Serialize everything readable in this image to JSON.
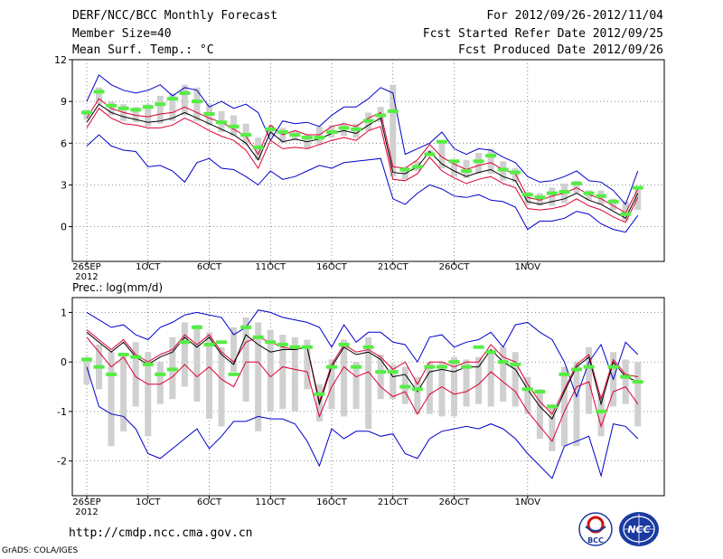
{
  "header": {
    "title": "DERF/NCC/BCC Monthly Forecast",
    "member": "Member Size=40",
    "variable": "Mean Surf. Temp.: °C",
    "period": "For 2012/09/26-2012/11/04",
    "started": "Fcst Started Refer Date 2012/09/25",
    "produced": "Fcst Produced Date 2012/09/26"
  },
  "footer": {
    "url": "http://cmdp.ncc.cma.gov.cn",
    "grads": "GrADS: COLA/IGES",
    "bcc_logo": "BCC",
    "ncc_logo": "NCC"
  },
  "colors": {
    "envelope": "#0000cc",
    "spread": "#dd0033",
    "mean": "#000000",
    "box": "#d0d0d0",
    "median": "#55ee44",
    "grid": "#555555"
  },
  "chart_data": [
    {
      "type": "line",
      "title": "Mean Surf. Temp.: °C",
      "ylim": [
        -2.5,
        12
      ],
      "yticks": [
        0,
        3,
        6,
        9,
        12
      ],
      "xticks": [
        {
          "day": 0,
          "label": "26SEP",
          "sublabel": "2012"
        },
        {
          "day": 5,
          "label": "1OCT"
        },
        {
          "day": 10,
          "label": "6OCT"
        },
        {
          "day": 15,
          "label": "11OCT"
        },
        {
          "day": 20,
          "label": "16OCT"
        },
        {
          "day": 25,
          "label": "21OCT"
        },
        {
          "day": 30,
          "label": "26OCT"
        },
        {
          "day": 36,
          "label": "1NOV"
        }
      ],
      "series": [
        {
          "name": "max",
          "values": [
            9.0,
            10.9,
            10.2,
            9.8,
            9.6,
            9.8,
            10.2,
            9.4,
            10.0,
            9.8,
            8.6,
            9.0,
            8.5,
            8.8,
            8.2,
            6.2,
            7.6,
            7.4,
            7.5,
            7.2,
            8.0,
            8.6,
            8.6,
            9.2,
            10.0,
            9.6,
            5.2,
            5.6,
            6.0,
            6.8,
            5.6,
            5.2,
            5.6,
            5.5,
            5.0,
            4.6,
            3.6,
            3.2,
            3.3,
            3.6,
            4.0,
            3.3,
            3.2,
            2.6,
            1.6,
            4.0
          ]
        },
        {
          "name": "upper",
          "values": [
            7.8,
            9.2,
            8.5,
            8.2,
            8.0,
            7.9,
            8.1,
            8.2,
            8.6,
            8.2,
            7.8,
            7.5,
            7.0,
            6.5,
            5.2,
            7.3,
            6.6,
            6.9,
            6.6,
            6.6,
            7.2,
            7.4,
            7.2,
            7.8,
            8.2,
            4.3,
            4.2,
            4.8,
            5.9,
            5.0,
            4.5,
            4.1,
            4.4,
            4.6,
            4.1,
            3.8,
            2.1,
            1.9,
            2.2,
            2.4,
            2.8,
            2.3,
            2.0,
            1.5,
            1.0,
            2.7
          ]
        },
        {
          "name": "mean",
          "values": [
            7.5,
            8.8,
            8.2,
            7.9,
            7.7,
            7.5,
            7.6,
            7.8,
            8.2,
            7.8,
            7.4,
            7.0,
            6.6,
            6.0,
            4.8,
            6.8,
            6.1,
            6.3,
            6.1,
            6.3,
            6.7,
            6.9,
            6.7,
            7.3,
            7.8,
            3.9,
            3.8,
            4.3,
            5.4,
            4.5,
            4.0,
            3.6,
            3.9,
            4.1,
            3.6,
            3.3,
            1.8,
            1.6,
            1.8,
            2.0,
            2.4,
            1.9,
            1.6,
            1.1,
            0.6,
            2.4
          ]
        },
        {
          "name": "lower",
          "values": [
            7.1,
            8.5,
            7.8,
            7.4,
            7.3,
            7.1,
            7.1,
            7.3,
            7.8,
            7.4,
            6.9,
            6.5,
            6.2,
            5.5,
            4.2,
            6.2,
            5.6,
            5.7,
            5.6,
            5.9,
            6.2,
            6.4,
            6.2,
            6.9,
            7.2,
            3.4,
            3.3,
            3.8,
            5.0,
            4.0,
            3.5,
            3.1,
            3.4,
            3.6,
            3.1,
            2.8,
            1.3,
            1.2,
            1.3,
            1.5,
            2.0,
            1.5,
            1.2,
            0.7,
            0.3,
            2.1
          ]
        },
        {
          "name": "min",
          "values": [
            5.8,
            6.6,
            5.8,
            5.5,
            5.4,
            4.3,
            4.4,
            4.0,
            3.2,
            4.6,
            4.9,
            4.2,
            4.1,
            3.6,
            3.0,
            4.0,
            3.4,
            3.6,
            4.0,
            4.4,
            4.2,
            4.6,
            4.7,
            4.8,
            4.9,
            2.0,
            1.6,
            2.4,
            3.0,
            2.7,
            2.2,
            2.1,
            2.3,
            1.9,
            1.8,
            1.4,
            -0.2,
            0.4,
            0.4,
            0.6,
            1.1,
            0.9,
            0.2,
            -0.2,
            -0.4,
            0.8
          ]
        }
      ],
      "boxes": {
        "low": [
          7.7,
          8.8,
          8.0,
          7.6,
          7.5,
          7.2,
          7.4,
          7.6,
          8.0,
          7.6,
          7.3,
          6.8,
          6.5,
          5.9,
          4.8,
          6.5,
          6.0,
          6.2,
          5.6,
          5.9,
          6.4,
          6.5,
          6.4,
          6.9,
          7.5,
          3.6,
          3.4,
          4.0,
          5.3,
          4.2,
          3.6,
          3.5,
          3.8,
          3.8,
          3.3,
          3.2,
          1.6,
          1.5,
          1.5,
          1.7,
          2.4,
          1.9,
          1.6,
          1.2,
          0.4,
          1.2
        ],
        "high": [
          8.4,
          10.0,
          9.0,
          8.8,
          8.6,
          8.8,
          9.4,
          9.6,
          10.2,
          10.0,
          8.8,
          8.3,
          8.0,
          7.4,
          6.4,
          7.3,
          7.1,
          6.9,
          6.6,
          7.2,
          7.3,
          7.4,
          7.4,
          8.2,
          8.6,
          10.2,
          4.3,
          4.7,
          5.5,
          6.0,
          4.8,
          4.8,
          5.3,
          5.6,
          4.7,
          4.2,
          2.5,
          2.4,
          2.8,
          3.1,
          3.3,
          2.6,
          2.6,
          2.0,
          1.8,
          2.8
        ],
        "median": [
          8.2,
          9.7,
          8.7,
          8.5,
          8.4,
          8.6,
          8.8,
          9.2,
          9.6,
          9.0,
          8.1,
          7.5,
          7.2,
          6.6,
          5.7,
          7.0,
          6.8,
          6.6,
          6.4,
          6.4,
          6.8,
          7.1,
          7.0,
          7.6,
          8.0,
          8.3,
          4.1,
          4.3,
          5.2,
          6.1,
          4.7,
          4.0,
          4.7,
          5.1,
          4.1,
          3.9,
          2.3,
          2.1,
          2.4,
          2.5,
          3.1,
          2.4,
          2.2,
          1.8,
          0.9,
          2.8
        ]
      }
    },
    {
      "type": "line",
      "title": "Prec.: log(mm/d)",
      "ylim": [
        -2.7,
        1.3
      ],
      "yticks": [
        -2,
        -1,
        0,
        1
      ],
      "xticks": [
        {
          "day": 0,
          "label": "26SEP",
          "sublabel": "2012"
        },
        {
          "day": 5,
          "label": "1OCT"
        },
        {
          "day": 10,
          "label": "6OCT"
        },
        {
          "day": 15,
          "label": "11OCT"
        },
        {
          "day": 20,
          "label": "16OCT"
        },
        {
          "day": 25,
          "label": "21OCT"
        },
        {
          "day": 30,
          "label": "26OCT"
        },
        {
          "day": 36,
          "label": "1NOV"
        }
      ],
      "series": [
        {
          "name": "max",
          "values": [
            1.0,
            0.85,
            0.7,
            0.75,
            0.55,
            0.45,
            0.7,
            0.8,
            0.95,
            1.0,
            0.95,
            0.9,
            0.55,
            0.7,
            1.05,
            1.0,
            0.9,
            0.85,
            0.8,
            0.7,
            0.3,
            0.75,
            0.4,
            0.6,
            0.6,
            0.4,
            0.35,
            0.0,
            0.5,
            0.55,
            0.3,
            0.4,
            0.45,
            0.6,
            0.3,
            0.75,
            0.8,
            0.6,
            0.45,
            0.0,
            -0.7,
            0.0,
            0.35,
            -0.35,
            0.4,
            0.15
          ]
        },
        {
          "name": "upper",
          "values": [
            0.65,
            0.45,
            0.25,
            0.45,
            0.15,
            0.0,
            0.15,
            0.25,
            0.55,
            0.35,
            0.55,
            0.2,
            0.0,
            0.4,
            0.5,
            0.4,
            0.3,
            0.25,
            0.3,
            -0.8,
            -0.05,
            0.35,
            0.2,
            0.25,
            0.1,
            -0.15,
            0.0,
            -0.45,
            0.0,
            0.0,
            -0.1,
            0.0,
            0.0,
            0.35,
            0.1,
            0.0,
            -0.45,
            -0.8,
            -1.05,
            -0.55,
            -0.05,
            0.15,
            -0.75,
            0.05,
            -0.25,
            -0.3
          ]
        },
        {
          "name": "mean",
          "values": [
            0.6,
            0.4,
            0.2,
            0.4,
            0.1,
            -0.05,
            0.1,
            0.2,
            0.5,
            0.3,
            0.5,
            0.15,
            -0.05,
            0.55,
            0.35,
            0.2,
            0.25,
            0.25,
            0.3,
            -0.85,
            -0.1,
            0.3,
            0.15,
            0.2,
            0.05,
            -0.3,
            -0.25,
            -0.6,
            -0.2,
            -0.15,
            -0.2,
            -0.1,
            -0.1,
            0.25,
            0.0,
            -0.15,
            -0.55,
            -0.9,
            -1.15,
            -0.6,
            -0.1,
            0.1,
            -0.85,
            0.0,
            -0.3,
            -0.4
          ]
        },
        {
          "name": "lower",
          "values": [
            0.5,
            0.2,
            -0.1,
            0.1,
            -0.3,
            -0.45,
            -0.45,
            -0.3,
            -0.05,
            -0.3,
            -0.1,
            -0.35,
            -0.5,
            0.0,
            0.0,
            -0.3,
            -0.1,
            -0.15,
            -0.2,
            -1.1,
            -0.5,
            -0.1,
            -0.3,
            -0.2,
            -0.5,
            -0.7,
            -0.6,
            -1.05,
            -0.65,
            -0.5,
            -0.65,
            -0.6,
            -0.45,
            -0.2,
            -0.4,
            -0.6,
            -1.0,
            -1.3,
            -1.6,
            -1.0,
            -0.5,
            -0.4,
            -1.3,
            -0.6,
            -0.5,
            -0.85
          ]
        },
        {
          "name": "min",
          "values": [
            -0.1,
            -0.9,
            -1.05,
            -1.1,
            -1.35,
            -1.85,
            -1.95,
            -1.75,
            -1.55,
            -1.35,
            -1.75,
            -1.5,
            -1.2,
            -1.2,
            -1.1,
            -1.15,
            -1.15,
            -1.25,
            -1.6,
            -2.1,
            -1.35,
            -1.55,
            -1.4,
            -1.4,
            -1.5,
            -1.45,
            -1.85,
            -1.95,
            -1.55,
            -1.4,
            -1.35,
            -1.3,
            -1.35,
            -1.25,
            -1.35,
            -1.55,
            -1.85,
            -2.1,
            -2.35,
            -1.7,
            -1.6,
            -1.5,
            -2.3,
            -1.25,
            -1.3,
            -1.55
          ]
        }
      ],
      "boxes": {
        "low": [
          -0.45,
          -0.55,
          -1.7,
          -1.4,
          -0.9,
          -1.5,
          -0.85,
          -0.75,
          -0.5,
          -0.8,
          -1.15,
          -1.3,
          -0.2,
          -0.8,
          -1.4,
          -1.0,
          -0.95,
          -1.0,
          -0.55,
          -1.2,
          -0.95,
          -1.1,
          -0.95,
          -1.35,
          -0.75,
          -0.75,
          -0.85,
          -1.05,
          -1.05,
          -1.1,
          -1.1,
          -0.9,
          -0.85,
          -0.9,
          -0.8,
          -0.9,
          -1.05,
          -1.55,
          -1.8,
          -1.7,
          -1.7,
          -1.05,
          -1.5,
          -0.9,
          -0.85,
          -1.3
        ],
        "high": [
          0.1,
          0.35,
          0.2,
          0.15,
          0.4,
          0.2,
          0.0,
          0.5,
          0.8,
          0.75,
          0.6,
          0.3,
          0.7,
          0.9,
          0.8,
          0.65,
          0.55,
          0.5,
          0.45,
          -0.45,
          0.05,
          0.45,
          0.0,
          0.5,
          0.15,
          -0.05,
          -0.1,
          -0.3,
          0.0,
          0.0,
          0.1,
          0.05,
          0.1,
          0.25,
          0.3,
          0.2,
          -0.3,
          -0.55,
          -0.85,
          -0.1,
          0.0,
          0.3,
          -0.65,
          0.2,
          0.05,
          0.0
        ],
        "median": [
          0.05,
          -0.1,
          -0.25,
          0.15,
          0.1,
          -0.05,
          -0.25,
          -0.15,
          0.4,
          0.7,
          0.35,
          0.4,
          -0.25,
          0.7,
          0.5,
          0.4,
          0.35,
          0.3,
          0.3,
          -0.65,
          -0.1,
          0.35,
          -0.1,
          0.3,
          -0.2,
          -0.2,
          -0.5,
          -0.55,
          -0.1,
          -0.1,
          0.0,
          -0.1,
          0.3,
          0.2,
          0.0,
          -0.05,
          -0.55,
          -0.6,
          -0.9,
          -0.25,
          -0.15,
          -0.1,
          -1.0,
          -0.1,
          -0.3,
          -0.4
        ]
      }
    }
  ]
}
